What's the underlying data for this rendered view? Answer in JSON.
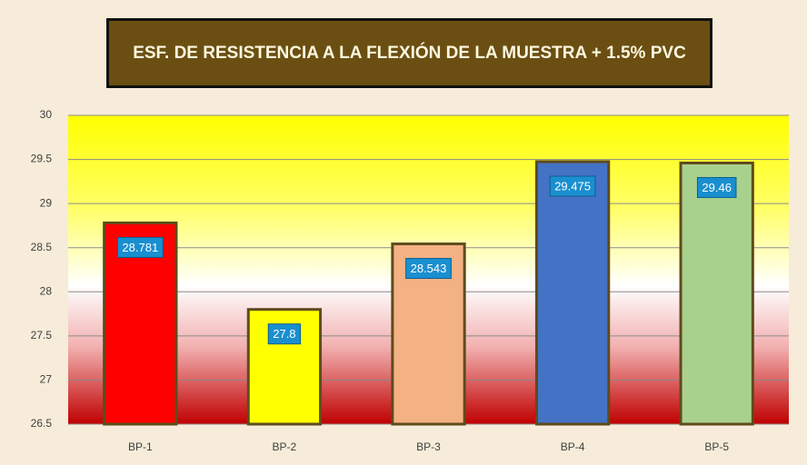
{
  "chart_data": {
    "type": "bar",
    "title": "ESF. DE RESISTENCIA A LA FLEXIÓN DE LA MUESTRA + 1.5% PVC",
    "categories": [
      "BP-1",
      "BP-2",
      "BP-3",
      "BP-4",
      "BP-5"
    ],
    "values": [
      28.781,
      27.8,
      28.543,
      29.475,
      29.46
    ],
    "colors": [
      "#ff0000",
      "#ffff00",
      "#f4b183",
      "#4472c4",
      "#a9d18e"
    ],
    "ylim": [
      26.5,
      30
    ],
    "yticks": [
      26.5,
      27,
      27.5,
      28,
      28.5,
      29,
      29.5,
      30
    ],
    "grid": true
  }
}
